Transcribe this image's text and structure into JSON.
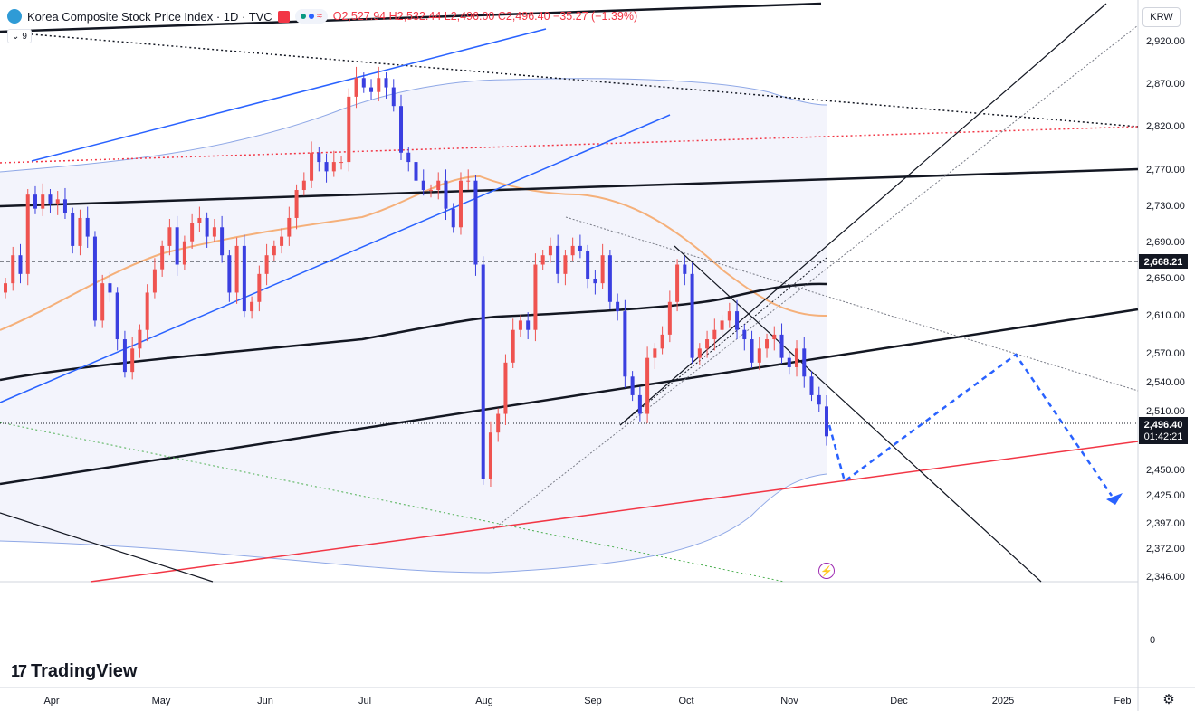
{
  "header": {
    "title": "Korea Composite Stock Price Index · 1D · TVC",
    "ohlc": "O2,527.94 H2,532.44 L2,496.00 C2,496.40 −35.27 (−1.39%)"
  },
  "indicator_chip": {
    "count": "9"
  },
  "currency_label": "KRW",
  "brand": "TradingView",
  "colors": {
    "up": "#ef5350",
    "down": "#3a3fe0",
    "accent": "#2962ff",
    "band": "#9fb5e8",
    "ma": "#f4a460"
  },
  "chart_data": {
    "type": "candlestick",
    "title": "Korea Composite Stock Price Index · 1D · TVC",
    "y_ticks": [
      "2,920.00",
      "2,870.00",
      "2,820.00",
      "2,770.00",
      "2,730.00",
      "2,690.00",
      "2,650.00",
      "2,610.00",
      "2,570.00",
      "2,540.00",
      "2,510.00",
      "2,450.00",
      "2,425.00",
      "2,397.00",
      "2,372.00",
      "2,346.00"
    ],
    "volume_pane_tick": "0",
    "x_ticks": [
      "Apr",
      "May",
      "Jun",
      "Jul",
      "Aug",
      "Sep",
      "Oct",
      "Nov",
      "Dec",
      "2025",
      "Feb"
    ],
    "price_labels": {
      "dashed_level": "2,668.21",
      "last_price": "2,496.40",
      "countdown": "01:42:21"
    },
    "ohlc": {
      "open": 2527.94,
      "high": 2532.44,
      "low": 2496.0,
      "close": 2496.4,
      "change": -35.27,
      "change_pct": -1.39
    },
    "candles_close": [
      2660,
      2690,
      2670,
      2755,
      2740,
      2755,
      2745,
      2750,
      2735,
      2700,
      2730,
      2710,
      2620,
      2660,
      2650,
      2600,
      2565,
      2590,
      2610,
      2650,
      2675,
      2700,
      2720,
      2680,
      2705,
      2725,
      2730,
      2710,
      2720,
      2690,
      2650,
      2700,
      2630,
      2640,
      2670,
      2690,
      2700,
      2710,
      2730,
      2760,
      2770,
      2800,
      2790,
      2780,
      2790,
      2790,
      2860,
      2880,
      2870,
      2865,
      2880,
      2870,
      2850,
      2800,
      2790,
      2770,
      2760,
      2760,
      2770,
      2740,
      2720,
      2770,
      2770,
      2680,
      2450,
      2500,
      2520,
      2575,
      2610,
      2620,
      2610,
      2680,
      2690,
      2700,
      2670,
      2690,
      2700,
      2695,
      2665,
      2660,
      2690,
      2640,
      2630,
      2560,
      2540,
      2520,
      2580,
      2590,
      2605,
      2640,
      2680,
      2670,
      2580,
      2590,
      2600,
      2610,
      2620,
      2630,
      2610,
      2600,
      2575,
      2590,
      2600,
      2605,
      2580,
      2570,
      2590,
      2560,
      2540,
      2530,
      2496
    ]
  }
}
